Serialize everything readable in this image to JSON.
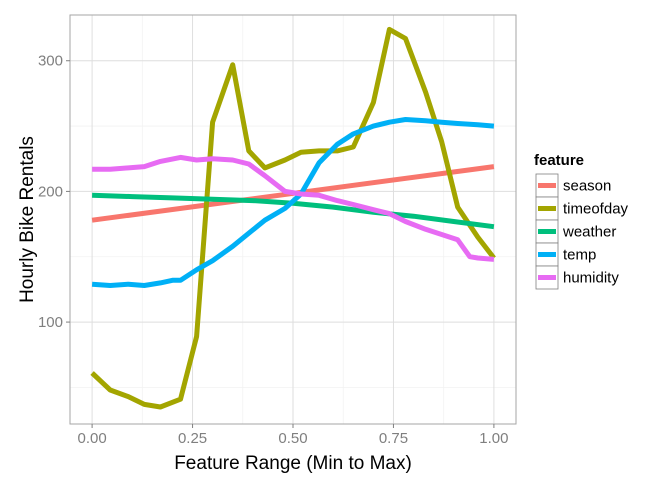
{
  "chart_data": {
    "type": "line",
    "xlabel": "Feature Range (Min to Max)",
    "ylabel": "Hourly Bike Rentals",
    "xlim": [
      -0.055,
      1.055
    ],
    "ylim": [
      22,
      335
    ],
    "xticks": [
      0.0,
      0.25,
      0.5,
      0.75,
      1.0
    ],
    "xtick_labels": [
      "0.00",
      "0.25",
      "0.50",
      "0.75",
      "1.00"
    ],
    "yticks": [
      100,
      200,
      300
    ],
    "ytick_labels": [
      "100",
      "200",
      "300"
    ],
    "grid": true,
    "legend": {
      "title": "feature",
      "position": "right"
    },
    "series": [
      {
        "name": "season",
        "color": "#F8766D",
        "x": [
          0.0,
          1.0
        ],
        "y": [
          178,
          219
        ]
      },
      {
        "name": "timeofday",
        "color": "#A3A500",
        "x": [
          0.0,
          0.045,
          0.09,
          0.13,
          0.17,
          0.22,
          0.26,
          0.3,
          0.35,
          0.39,
          0.43,
          0.48,
          0.52,
          0.565,
          0.61,
          0.65,
          0.7,
          0.74,
          0.78,
          0.83,
          0.87,
          0.91,
          0.96,
          1.0
        ],
        "y": [
          61,
          48,
          43,
          37,
          35,
          41,
          89,
          253,
          297,
          231,
          218,
          224,
          230,
          231,
          231,
          234,
          268,
          324,
          317,
          276,
          238,
          188,
          165,
          149
        ]
      },
      {
        "name": "weather",
        "color": "#00BF7D",
        "x": [
          0.0,
          0.1,
          0.2,
          0.3,
          0.4,
          0.5,
          0.6,
          0.7,
          0.8,
          0.9,
          1.0
        ],
        "y": [
          197,
          196,
          195,
          194,
          193,
          191,
          188,
          184,
          181,
          177,
          173
        ]
      },
      {
        "name": "temp",
        "color": "#00B0F6",
        "x": [
          0.0,
          0.045,
          0.09,
          0.13,
          0.17,
          0.2,
          0.22,
          0.26,
          0.3,
          0.35,
          0.39,
          0.43,
          0.48,
          0.52,
          0.565,
          0.61,
          0.65,
          0.7,
          0.74,
          0.78,
          0.83,
          0.87,
          0.91,
          0.96,
          1.0
        ],
        "y": [
          129,
          128,
          129,
          128,
          130,
          132,
          132,
          140,
          147,
          158,
          168,
          178,
          187,
          198,
          222,
          236,
          244,
          250,
          253,
          255,
          254,
          253,
          252,
          251,
          250
        ]
      },
      {
        "name": "humidity",
        "color": "#E76BF3",
        "x": [
          0.0,
          0.045,
          0.09,
          0.13,
          0.17,
          0.22,
          0.26,
          0.3,
          0.35,
          0.39,
          0.43,
          0.48,
          0.52,
          0.565,
          0.61,
          0.65,
          0.7,
          0.74,
          0.78,
          0.83,
          0.87,
          0.91,
          0.94,
          0.96,
          1.0
        ],
        "y": [
          217,
          217,
          218,
          219,
          223,
          226,
          224,
          225,
          224,
          221,
          212,
          200,
          198,
          197,
          193,
          190,
          186,
          183,
          177,
          171,
          167,
          163,
          150,
          149,
          148
        ]
      }
    ]
  }
}
